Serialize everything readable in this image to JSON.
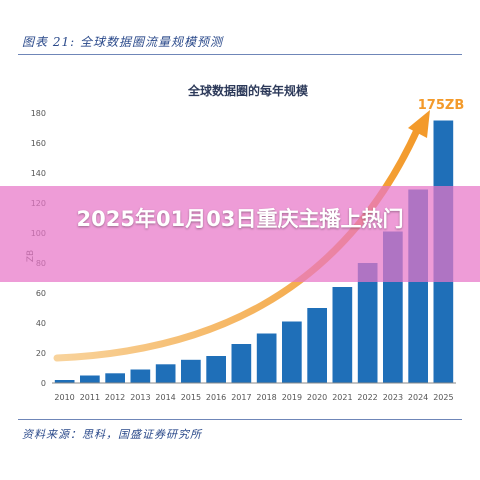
{
  "figure": {
    "caption": "图表 21:  全球数据圈流量规模预测",
    "source": "资料来源：思科，国盛证券研究所"
  },
  "overlay": {
    "headline": "2025年01月03日重庆主播上热门"
  },
  "colors": {
    "bar": "#1f6fb8",
    "arrow": "#f39a2b",
    "caption": "#2b4a8b",
    "overlay": "#e876c8"
  },
  "chart_data": {
    "type": "bar",
    "title": "全球数据圈的每年规模",
    "ylabel": "ZB",
    "xlabel": "",
    "ylim": [
      0,
      180
    ],
    "yticks": [
      0,
      20,
      40,
      60,
      80,
      100,
      120,
      140,
      160,
      180
    ],
    "categories": [
      "2010",
      "2011",
      "2012",
      "2013",
      "2014",
      "2015",
      "2016",
      "2017",
      "2018",
      "2019",
      "2020",
      "2021",
      "2022",
      "2023",
      "2024",
      "2025"
    ],
    "values": [
      2,
      5,
      6.5,
      9,
      12.5,
      15.5,
      18,
      26,
      33,
      41,
      50,
      64,
      80,
      101,
      129,
      175
    ],
    "annotation": "175ZB",
    "grid": false,
    "legend": "none"
  }
}
